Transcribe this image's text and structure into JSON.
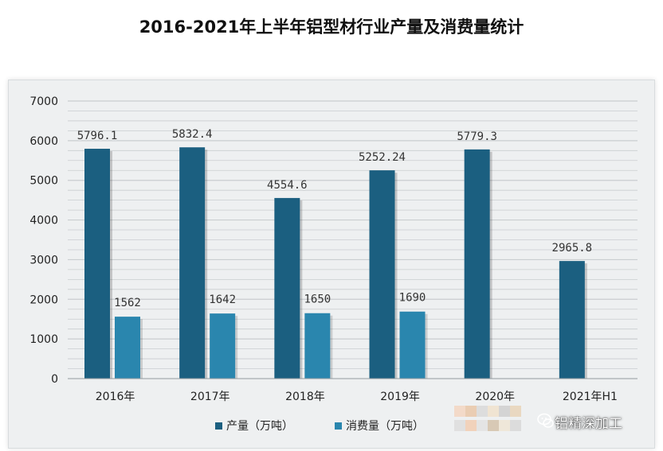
{
  "title": "2016-2021年上半年铝型材行业产量及消费量统计",
  "watermark": "铝精深加工",
  "colors": {
    "production": "#1b5f80",
    "consumption": "#2a86ae",
    "grid": "#c9cdd0",
    "background": "#eef0f1"
  },
  "chart_data": {
    "type": "bar",
    "categories": [
      "2016年",
      "2017年",
      "2018年",
      "2019年",
      "2020年",
      "2021年H1"
    ],
    "series": [
      {
        "name": "产量（万吨）",
        "values": [
          5796.1,
          5832.4,
          4554.6,
          5252.24,
          5779.3,
          2965.8
        ],
        "labels": [
          "5796.1",
          "5832.4",
          "4554.6",
          "5252.24",
          "5779.3",
          "2965.8"
        ]
      },
      {
        "name": "消费量（万吨）",
        "values": [
          1562,
          1642,
          1650,
          1690,
          null,
          null
        ],
        "labels": [
          "1562",
          "1642",
          "1650",
          "1690",
          "",
          ""
        ]
      }
    ],
    "yticks": [
      "0",
      "1000",
      "2000",
      "3000",
      "4000",
      "5000",
      "6000",
      "7000"
    ],
    "ylim": [
      0,
      7000
    ],
    "grid": true,
    "legend_position": "bottom"
  }
}
